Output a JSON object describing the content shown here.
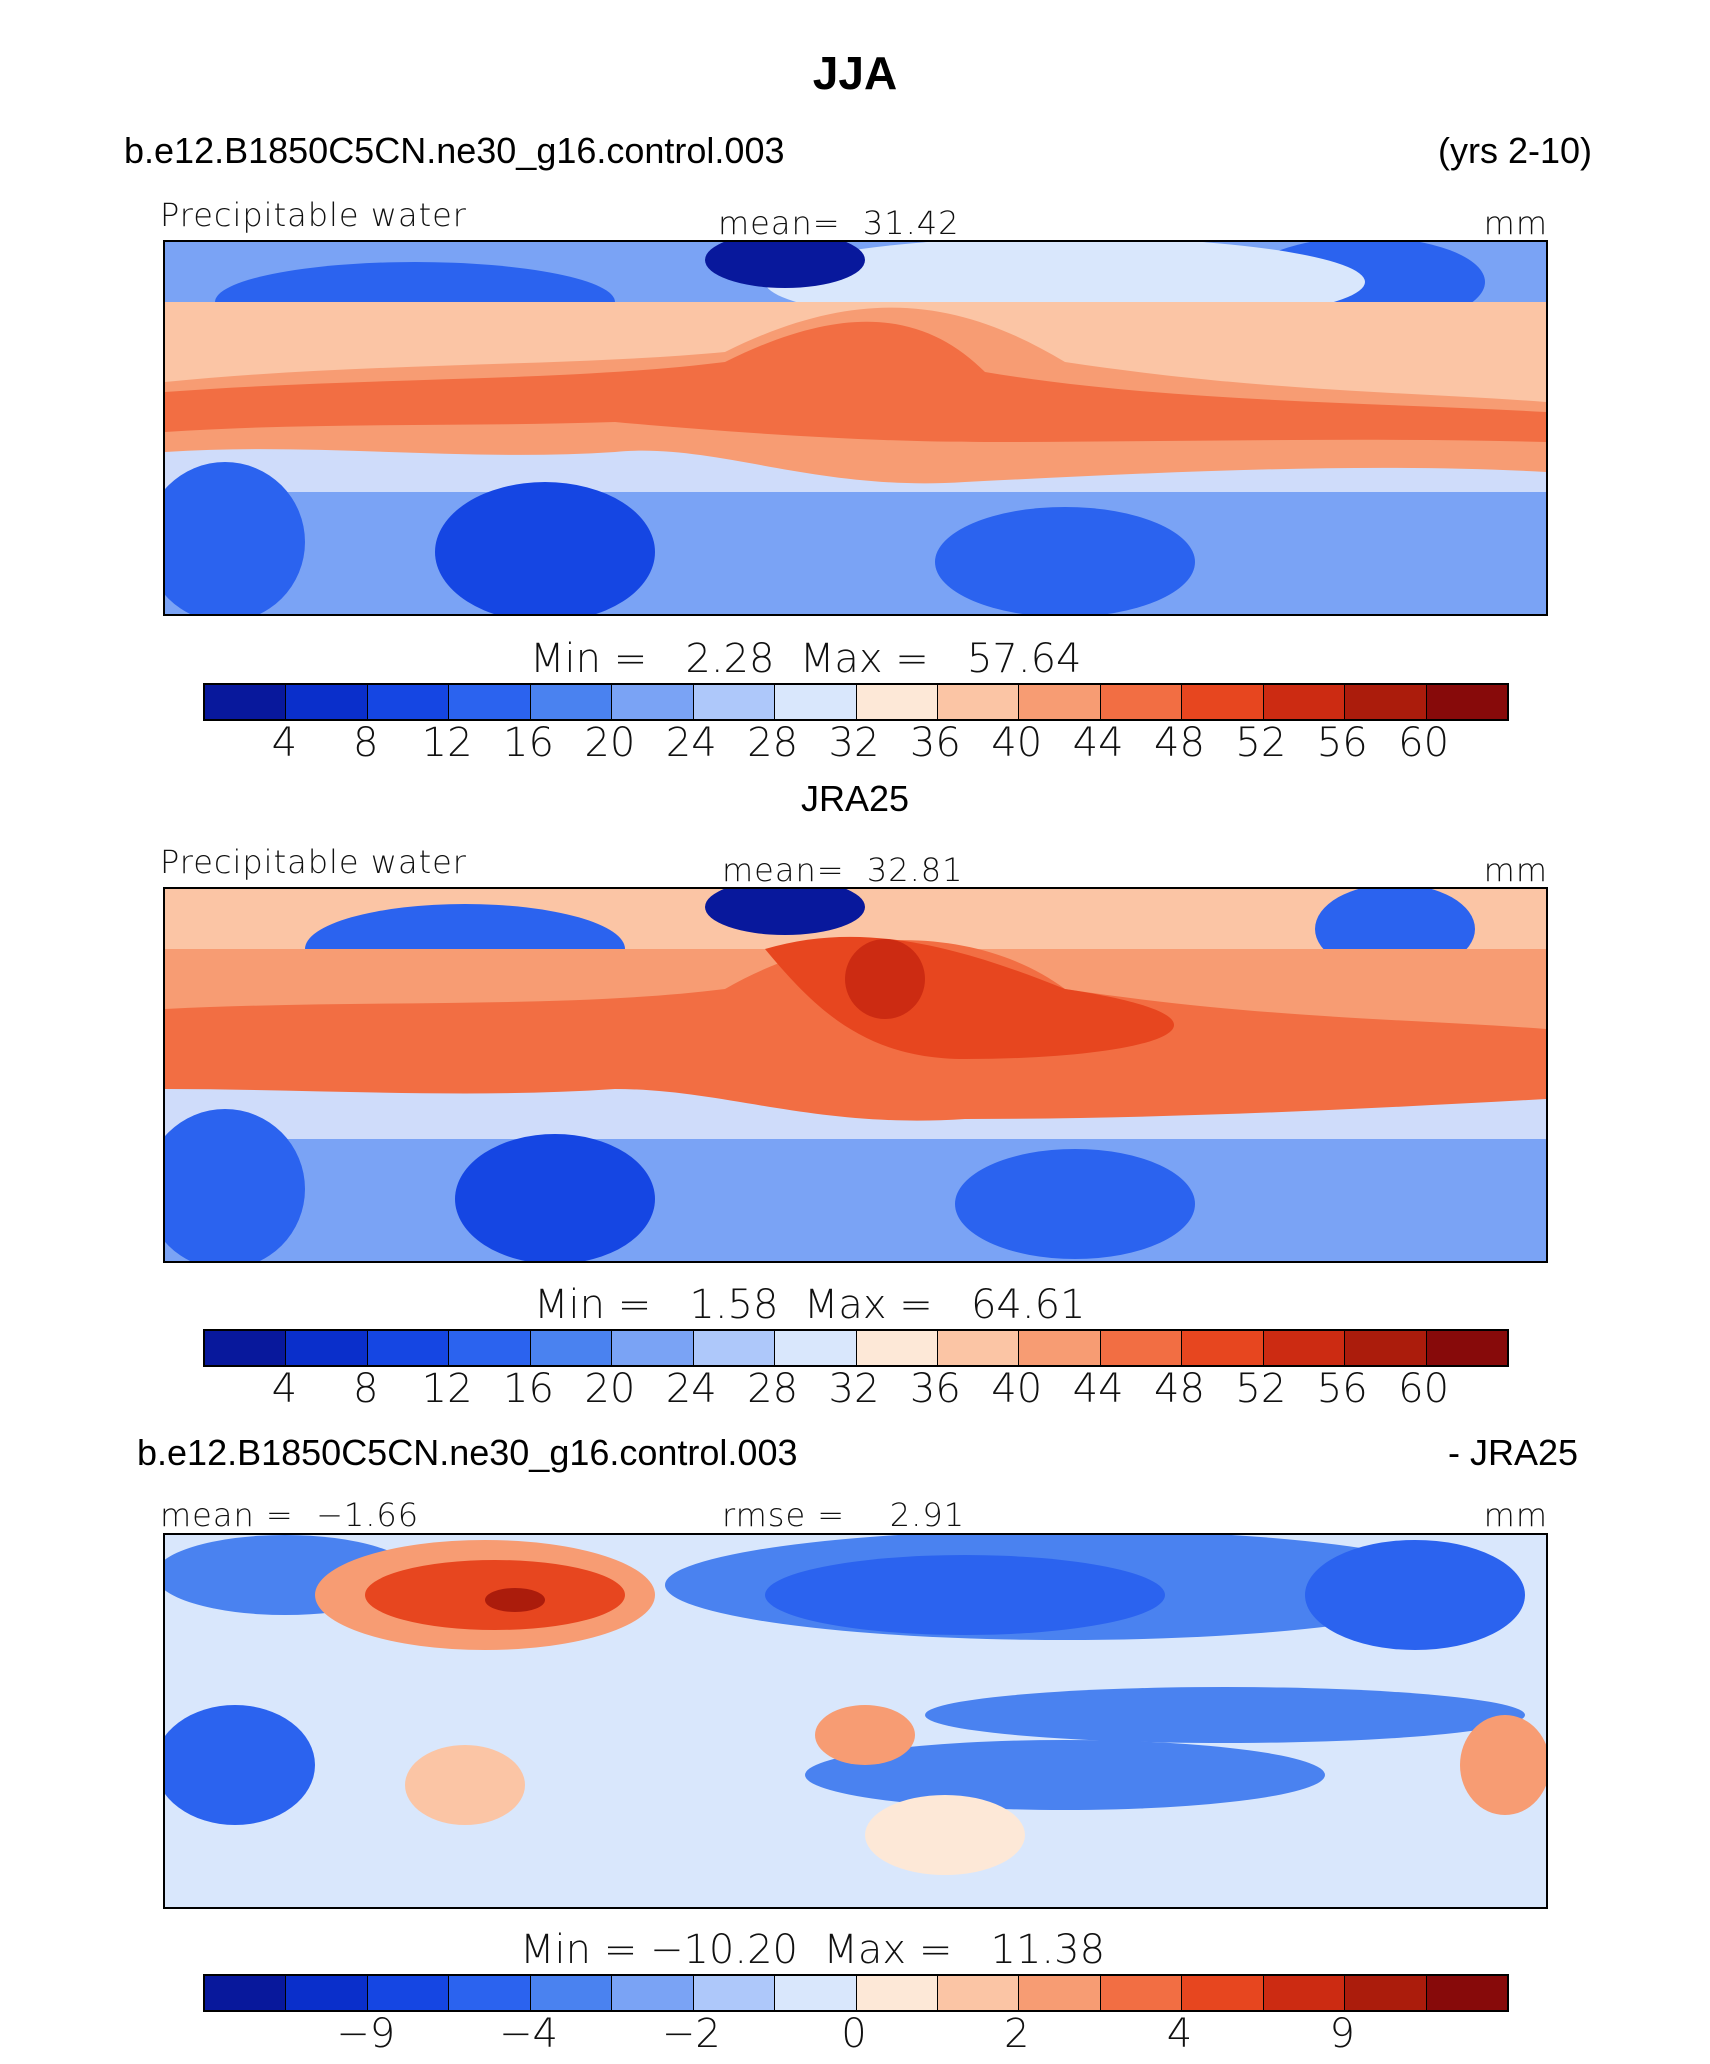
{
  "figure": {
    "title": "JJA",
    "case_name": "b.e12.B1850C5CN.ne30_g16.control.003",
    "years": "(yrs 2-10)",
    "obs_name": "JRA25",
    "diff_suffix": "- JRA25"
  },
  "colors": {
    "levels": [
      "#08189c",
      "#0a2fcb",
      "#1546e3",
      "#2b63ef",
      "#4a82f0",
      "#7aa3f5",
      "#aec8fa",
      "#d9e7fc",
      "#fde8d7",
      "#fbc5a5",
      "#f79c73",
      "#f26e43",
      "#e7461f",
      "#cc2b12",
      "#ab1c0c",
      "#870a0a"
    ]
  },
  "chart_data": [
    {
      "type": "contour-map",
      "panel": "model",
      "variable": "Precipitable water",
      "mean_label": "mean=",
      "mean_value": "31.42",
      "units": "mm",
      "min_label": "Min =",
      "min_value": "2.28",
      "max_label": "Max =",
      "max_value": "57.64",
      "colorbar_ticks": [
        "4",
        "8",
        "12",
        "16",
        "20",
        "24",
        "28",
        "32",
        "36",
        "40",
        "44",
        "48",
        "52",
        "56",
        "60"
      ]
    },
    {
      "type": "contour-map",
      "panel": "observations",
      "variable": "Precipitable water",
      "mean_label": "mean=",
      "mean_value": "32.81",
      "units": "mm",
      "min_label": "Min =",
      "min_value": "1.58",
      "max_label": "Max =",
      "max_value": "64.61",
      "colorbar_ticks": [
        "4",
        "8",
        "12",
        "16",
        "20",
        "24",
        "28",
        "32",
        "36",
        "40",
        "44",
        "48",
        "52",
        "56",
        "60"
      ]
    },
    {
      "type": "contour-map",
      "panel": "difference",
      "mean_label": "mean =",
      "mean_value": "−1.66",
      "rmse_label": "rmse =",
      "rmse_value": "2.91",
      "units": "mm",
      "min_label": "Min =",
      "min_value": "−10.20",
      "max_label": "Max =",
      "max_value": "11.38",
      "colorbar_ticks": [
        "−9",
        "−4",
        "−2",
        "0",
        "2",
        "4",
        "9"
      ]
    }
  ]
}
